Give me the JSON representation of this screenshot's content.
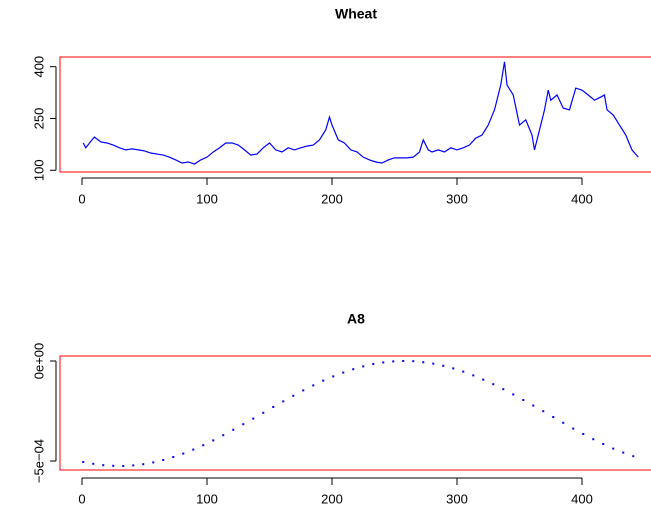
{
  "chart_data": [
    {
      "type": "line",
      "title": "Wheat",
      "color": "#0000ff",
      "box_color": "#ff0000",
      "x": [
        1,
        3,
        8,
        10,
        15,
        20,
        25,
        30,
        35,
        40,
        45,
        50,
        55,
        60,
        65,
        70,
        75,
        80,
        85,
        90,
        95,
        100,
        105,
        110,
        115,
        120,
        125,
        130,
        135,
        140,
        145,
        150,
        155,
        160,
        165,
        170,
        175,
        180,
        185,
        190,
        195,
        198,
        200,
        205,
        210,
        215,
        220,
        225,
        230,
        235,
        240,
        245,
        250,
        255,
        260,
        265,
        270,
        273,
        277,
        280,
        285,
        290,
        295,
        300,
        305,
        310,
        315,
        320,
        325,
        330,
        335,
        338,
        340,
        345,
        350,
        355,
        360,
        362,
        365,
        370,
        373,
        375,
        380,
        385,
        390,
        395,
        400,
        405,
        410,
        415,
        418,
        420,
        425,
        430,
        435,
        440,
        445
      ],
      "values": [
        179,
        165,
        188,
        196,
        182,
        179,
        173,
        165,
        159,
        162,
        159,
        156,
        150,
        147,
        144,
        138,
        130,
        121,
        124,
        118,
        130,
        138,
        153,
        165,
        179,
        179,
        173,
        159,
        144,
        147,
        165,
        179,
        159,
        153,
        165,
        159,
        165,
        170,
        173,
        188,
        217,
        254,
        231,
        188,
        179,
        159,
        153,
        138,
        130,
        124,
        121,
        130,
        136,
        136,
        136,
        138,
        153,
        188,
        159,
        153,
        159,
        153,
        165,
        159,
        165,
        173,
        193,
        202,
        231,
        275,
        347,
        414,
        347,
        318,
        231,
        246,
        202,
        159,
        202,
        275,
        332,
        303,
        318,
        280,
        275,
        338,
        332,
        318,
        303,
        312,
        318,
        275,
        260,
        231,
        202,
        159,
        138
      ],
      "xlim": [
        -17.6,
        463.2
      ],
      "xticks": [
        0,
        100,
        200,
        300,
        400
      ],
      "ylim": [
        95,
        428
      ],
      "yticks": [
        100,
        250,
        400
      ]
    },
    {
      "type": "scatter",
      "title": "A8",
      "color": "#0000ff",
      "box_color": "#ff0000",
      "x": [
        1,
        9,
        17,
        25,
        33,
        41,
        49,
        57,
        65,
        73,
        81,
        89,
        97,
        105,
        113,
        121,
        129,
        137,
        145,
        153,
        161,
        169,
        177,
        185,
        193,
        201,
        209,
        217,
        225,
        233,
        241,
        249,
        257,
        265,
        273,
        281,
        289,
        297,
        305,
        313,
        321,
        329,
        337,
        345,
        353,
        361,
        369,
        377,
        385,
        393,
        401,
        409,
        417,
        425,
        433,
        441
      ],
      "values": [
        -0.000505,
        -0.000514,
        -0.000521,
        -0.000524,
        -0.000525,
        -0.000522,
        -0.000516,
        -0.000507,
        -0.000495,
        -0.00048,
        -0.000463,
        -0.000443,
        -0.000421,
        -0.000397,
        -0.000371,
        -0.000344,
        -0.000316,
        -0.000288,
        -0.000259,
        -0.00023,
        -0.000202,
        -0.000174,
        -0.000147,
        -0.000122,
        -9.8e-05,
        -7.7e-05,
        -5.8e-05,
        -4.1e-05,
        -2.7e-05,
        -1.5e-05,
        -7e-06,
        -2e-06,
        0,
        -1e-06,
        -6e-06,
        -1.3e-05,
        -2.4e-05,
        -3.7e-05,
        -5.3e-05,
        -7.2e-05,
        -9.3e-05,
        -0.000116,
        -0.000141,
        -0.000167,
        -0.000195,
        -0.000223,
        -0.000251,
        -0.00028,
        -0.000309,
        -0.000338,
        -0.000365,
        -0.000391,
        -0.000415,
        -0.000438,
        -0.000458,
        -0.000476
      ],
      "xlim": [
        -17.6,
        463.2
      ],
      "xticks": [
        0,
        100,
        200,
        300,
        400
      ],
      "ylim": [
        -0.000545,
        2.5e-05
      ],
      "yticks": [
        {
          "value": -0.0005,
          "label": "−5e−04"
        },
        {
          "value": 0,
          "label": "0e+00"
        }
      ]
    }
  ]
}
